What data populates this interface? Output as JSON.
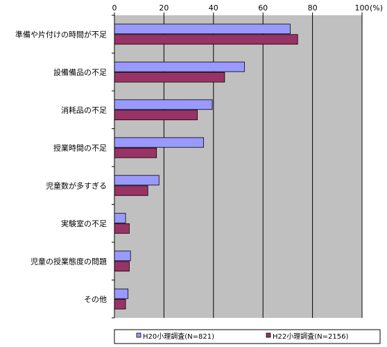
{
  "chart_data": {
    "type": "bar",
    "orientation": "horizontal",
    "categories": [
      "準備や片付けの時間が不足",
      "設備備品の不足",
      "消耗品の不足",
      "授業時間の不足",
      "児童数が多すぎる",
      "実験室の不足",
      "児童の授業態度の問題",
      "その他"
    ],
    "series": [
      {
        "name": "H20小理調査(N=821)",
        "color": "#9999ff",
        "values": [
          71,
          52.5,
          39.5,
          36,
          18,
          4.5,
          6.5,
          5.5
        ]
      },
      {
        "name": "H22小理調査(N=2156)",
        "color": "#993366",
        "values": [
          74,
          44.5,
          33.5,
          17,
          13.5,
          6,
          6,
          4.5
        ]
      }
    ],
    "xlim": [
      0,
      100
    ],
    "x_ticks": [
      "0",
      "20",
      "40",
      "60",
      "80",
      "100"
    ],
    "unit": "(%)",
    "grid": true,
    "legend_position": "bottom",
    "plot_background": "#c0c0c0"
  }
}
